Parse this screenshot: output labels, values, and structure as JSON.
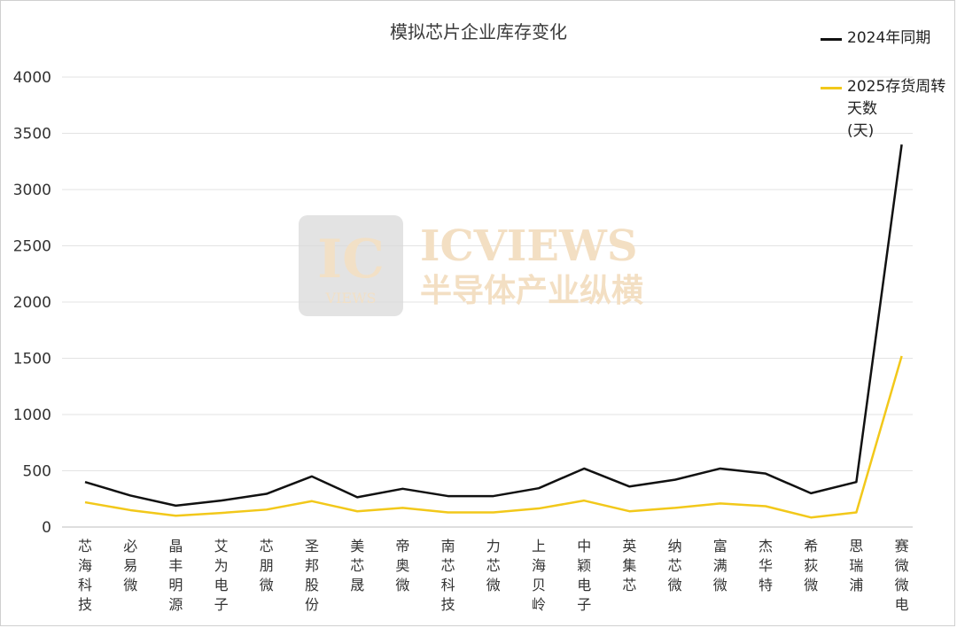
{
  "chart_data": {
    "type": "line",
    "title": "模拟芯片企业库存变化",
    "categories": [
      "芯海科技",
      "必易微",
      "晶丰明源",
      "艾为电子",
      "芯朋微",
      "圣邦股份",
      "美芯晟",
      "帝奥微",
      "南芯科技",
      "力芯微",
      "上海贝岭",
      "中颖电子",
      "英集芯",
      "纳芯微",
      "富满微",
      "杰华特",
      "希荻微",
      "思瑞浦",
      "赛微微电"
    ],
    "series": [
      {
        "name": "2024年同期",
        "color": "#111111",
        "values": [
          400,
          280,
          190,
          235,
          295,
          450,
          265,
          340,
          275,
          275,
          345,
          520,
          360,
          420,
          520,
          475,
          300,
          400,
          3400
        ]
      },
      {
        "name": "2025存货周转天数(天)",
        "color": "#f2c81a",
        "values": [
          220,
          150,
          100,
          125,
          155,
          230,
          140,
          170,
          130,
          130,
          165,
          235,
          140,
          170,
          210,
          185,
          85,
          130,
          1520
        ]
      }
    ],
    "yticks": [
      0,
      500,
      1000,
      1500,
      2000,
      2500,
      3000,
      3500,
      4000
    ],
    "ylim": [
      0,
      4000
    ],
    "grid": true,
    "legend_position": "top-right"
  },
  "legend": {
    "series1": "2024年同期",
    "series2_line1": "2025存货周转天数",
    "series2_line2": "(天)"
  },
  "watermark": {
    "logo_text": "IC",
    "logo_sub": "VIEWS",
    "brand": "ICVIEWS",
    "brand_cn": "半导体产业纵横"
  }
}
